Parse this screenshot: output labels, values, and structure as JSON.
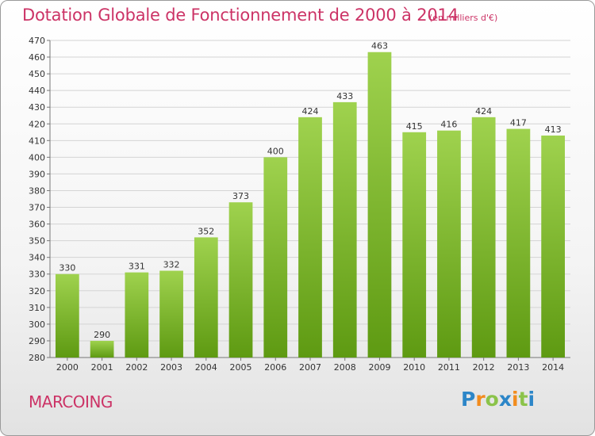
{
  "chart_data": {
    "type": "bar",
    "title": "Dotation Globale de Fonctionnement de 2000 à 2014",
    "unit": "(en milliers d'€)",
    "categories": [
      "2000",
      "2001",
      "2002",
      "2003",
      "2004",
      "2005",
      "2006",
      "2007",
      "2008",
      "2009",
      "2010",
      "2011",
      "2012",
      "2013",
      "2014"
    ],
    "values": [
      330,
      290,
      331,
      332,
      352,
      373,
      400,
      424,
      433,
      463,
      415,
      416,
      424,
      417,
      413
    ],
    "ylim": [
      280,
      470
    ],
    "ytick_step": 10,
    "grid": true,
    "bar_color_top": "#9fd24e",
    "bar_color_bottom": "#5e9a12"
  },
  "commune": "MARCOING",
  "logo": {
    "letters": [
      "P",
      "r",
      "o",
      "x",
      "i",
      "t",
      "i"
    ],
    "colors": [
      "#2c86c8",
      "#f28c1e",
      "#8bc34a",
      "#2c86c8",
      "#f28c1e",
      "#8bc34a",
      "#2c86c8"
    ]
  },
  "colors": {
    "accent": "#cc3366"
  }
}
